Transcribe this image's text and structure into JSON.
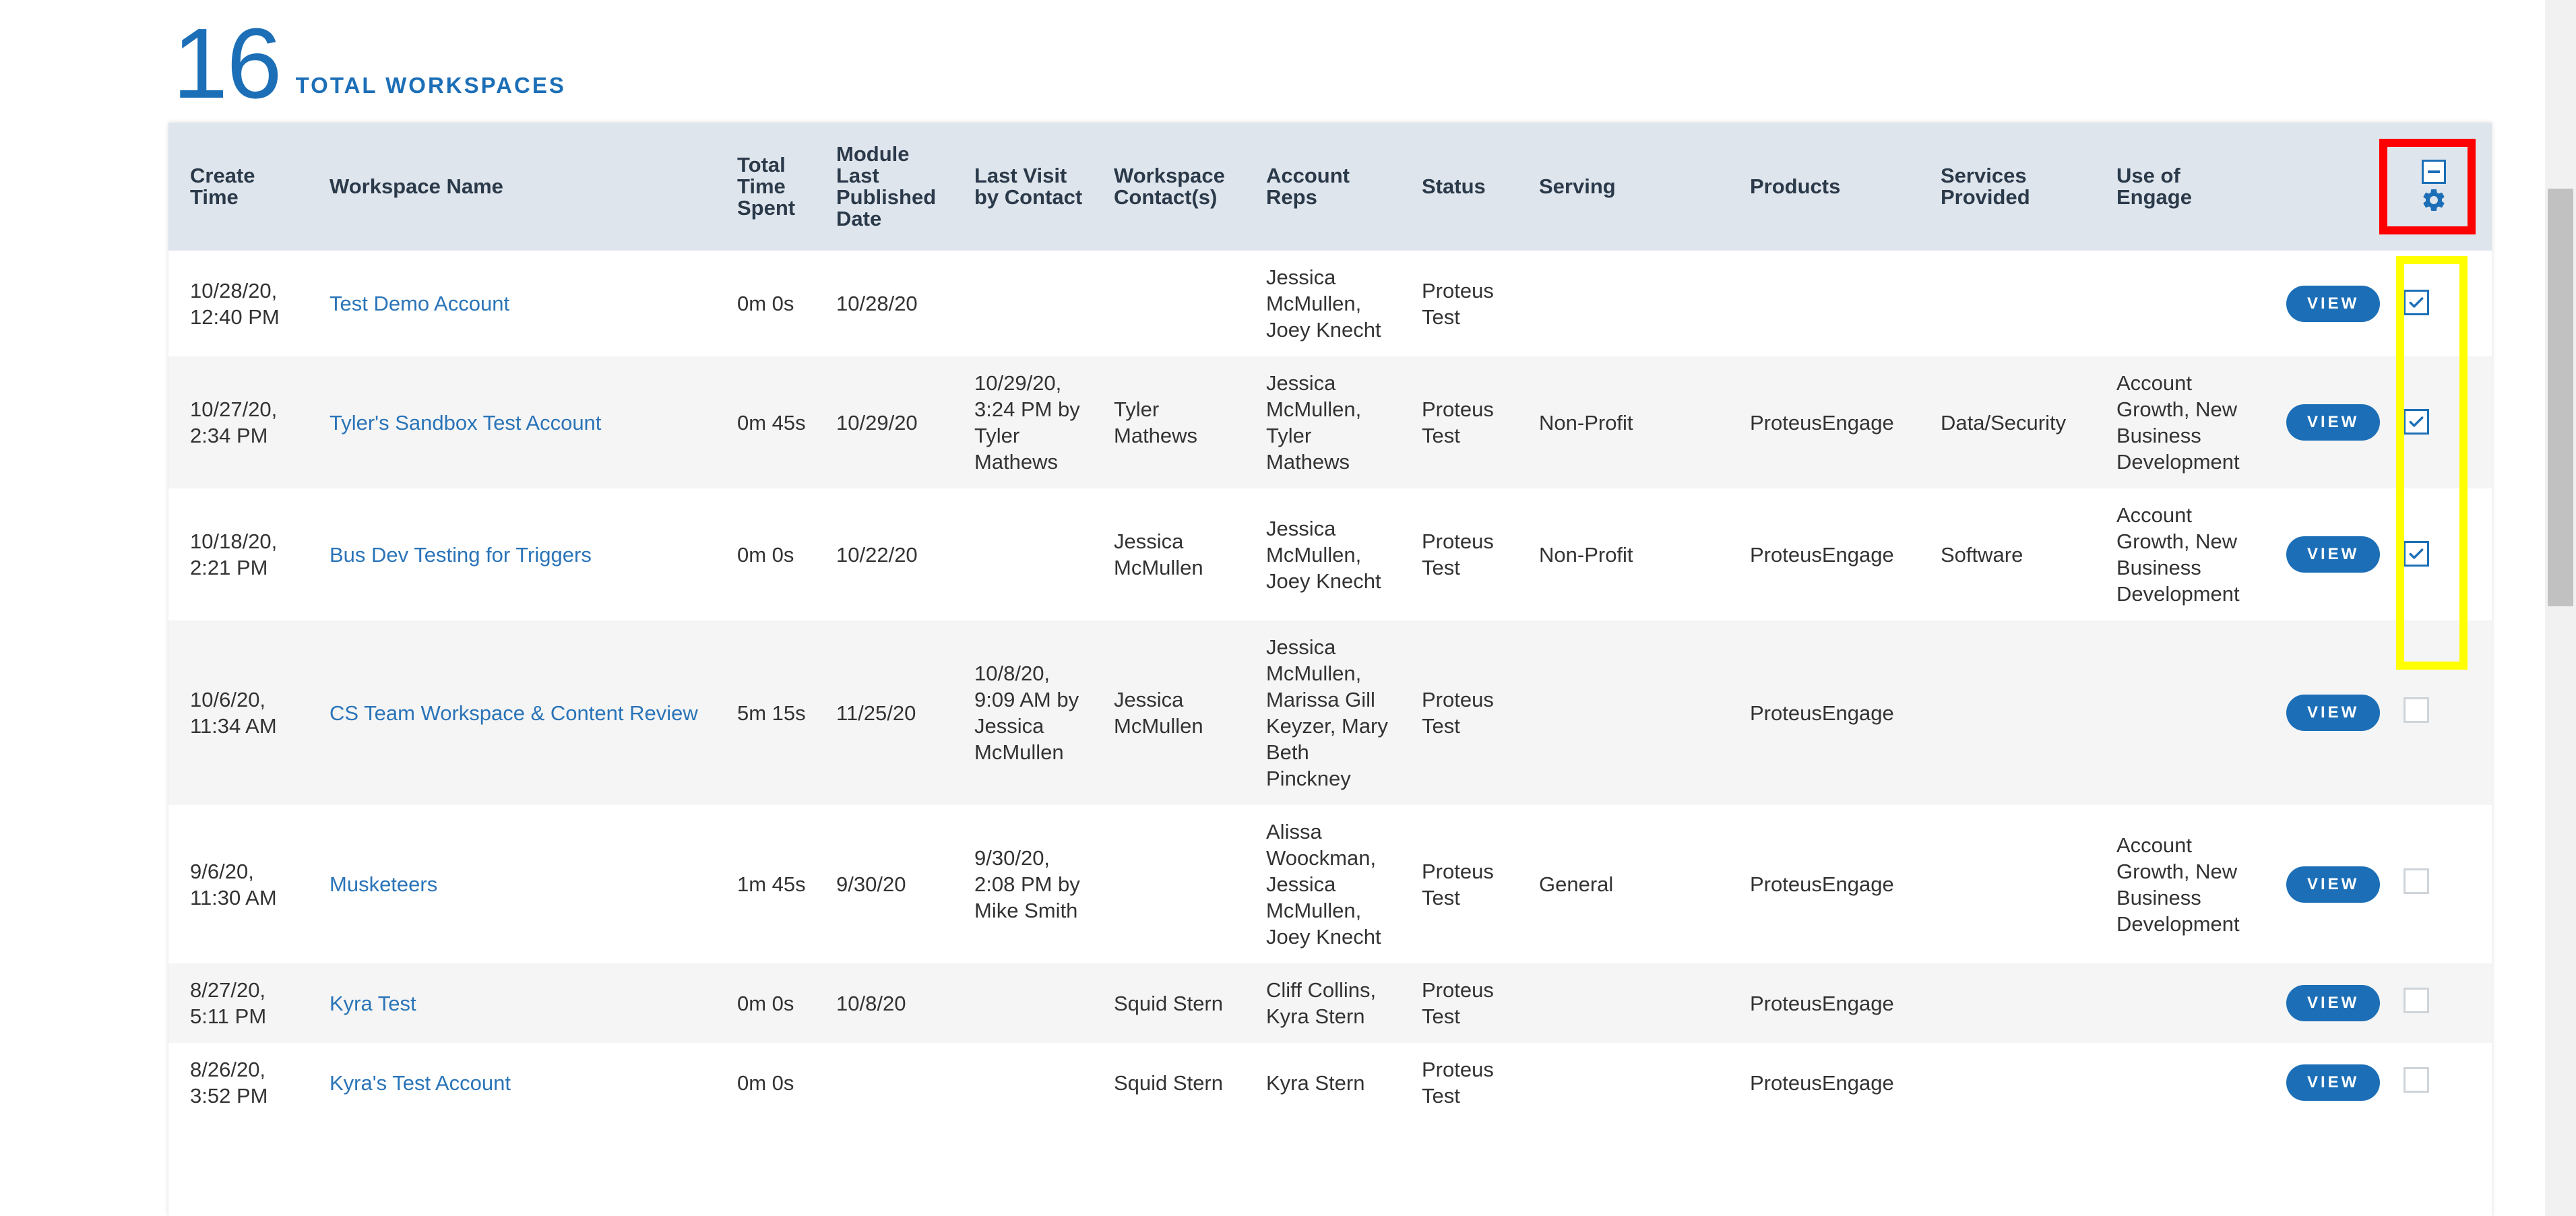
{
  "header": {
    "count": "16",
    "label": "TOTAL WORKSPACES"
  },
  "columns": [
    "Create Time",
    "Workspace Name",
    "Total Time Spent",
    "Module Last Published Date",
    "Last Visit by Contact",
    "Workspace Contact(s)",
    "Account Reps",
    "Status",
    "Serving",
    "Products",
    "Services Provided",
    "Use of Engage"
  ],
  "view_label": "VIEW",
  "rows": [
    {
      "create": "10/28/20, 12:40 PM",
      "name": "Test Demo Account",
      "time": "0m 0s",
      "published": "10/28/20",
      "last_visit": "",
      "contacts": "",
      "reps": "Jessica McMullen, Joey Knecht",
      "status": "Proteus Test",
      "serving": "",
      "products": "",
      "services": "",
      "use": "",
      "checked": true
    },
    {
      "create": "10/27/20, 2:34 PM",
      "name": "Tyler's Sandbox Test Account",
      "time": "0m 45s",
      "published": "10/29/20",
      "last_visit": "10/29/20, 3:24 PM by Tyler Mathews",
      "contacts": "Tyler Mathews",
      "reps": "Jessica McMullen, Tyler Mathews",
      "status": "Proteus Test",
      "serving": "Non-Profit",
      "products": "ProteusEngage",
      "services": "Data/Security",
      "use": "Account Growth, New Business Development",
      "checked": true
    },
    {
      "create": "10/18/20, 2:21 PM",
      "name": "Bus Dev Testing for Triggers",
      "time": "0m 0s",
      "published": "10/22/20",
      "last_visit": "",
      "contacts": "Jessica McMullen",
      "reps": "Jessica McMullen, Joey Knecht",
      "status": "Proteus Test",
      "serving": "Non-Profit",
      "products": "ProteusEngage",
      "services": "Software",
      "use": "Account Growth, New Business Development",
      "checked": true
    },
    {
      "create": "10/6/20, 11:34 AM",
      "name": "CS Team Workspace & Content Review",
      "time": "5m 15s",
      "published": "11/25/20",
      "last_visit": "10/8/20, 9:09 AM by Jessica McMullen",
      "contacts": "Jessica McMullen",
      "reps": "Jessica McMullen, Marissa Gill Keyzer, Mary Beth Pinckney",
      "status": "Proteus Test",
      "serving": "",
      "products": "ProteusEngage",
      "services": "",
      "use": "",
      "checked": false
    },
    {
      "create": "9/6/20, 11:30 AM",
      "name": "Musketeers",
      "time": "1m 45s",
      "published": "9/30/20",
      "last_visit": "9/30/20, 2:08 PM by Mike Smith",
      "contacts": "",
      "reps": "Alissa Woockman, Jessica McMullen, Joey Knecht",
      "status": "Proteus Test",
      "serving": "General",
      "products": "ProteusEngage",
      "services": "",
      "use": "Account Growth, New Business Development",
      "checked": false
    },
    {
      "create": "8/27/20, 5:11 PM",
      "name": "Kyra Test",
      "time": "0m 0s",
      "published": "10/8/20",
      "last_visit": "",
      "contacts": "Squid Stern",
      "reps": "Cliff Collins, Kyra Stern",
      "status": "Proteus Test",
      "serving": "",
      "products": "ProteusEngage",
      "services": "",
      "use": "",
      "checked": false
    },
    {
      "create": "8/26/20, 3:52 PM",
      "name": "Kyra's Test Account",
      "time": "0m 0s",
      "published": "",
      "last_visit": "",
      "contacts": "Squid Stern",
      "reps": "Kyra Stern",
      "status": "Proteus Test",
      "serving": "",
      "products": "ProteusEngage",
      "services": "",
      "use": "",
      "checked": false
    }
  ],
  "icons": {
    "settings": "gear-icon",
    "select_all": "minus-box-icon",
    "check": "check-icon"
  },
  "colors": {
    "accent": "#1c6fb7",
    "header_bg": "#dfe5ec",
    "highlight_red": "#ff0000",
    "highlight_yellow": "#ffff00"
  }
}
